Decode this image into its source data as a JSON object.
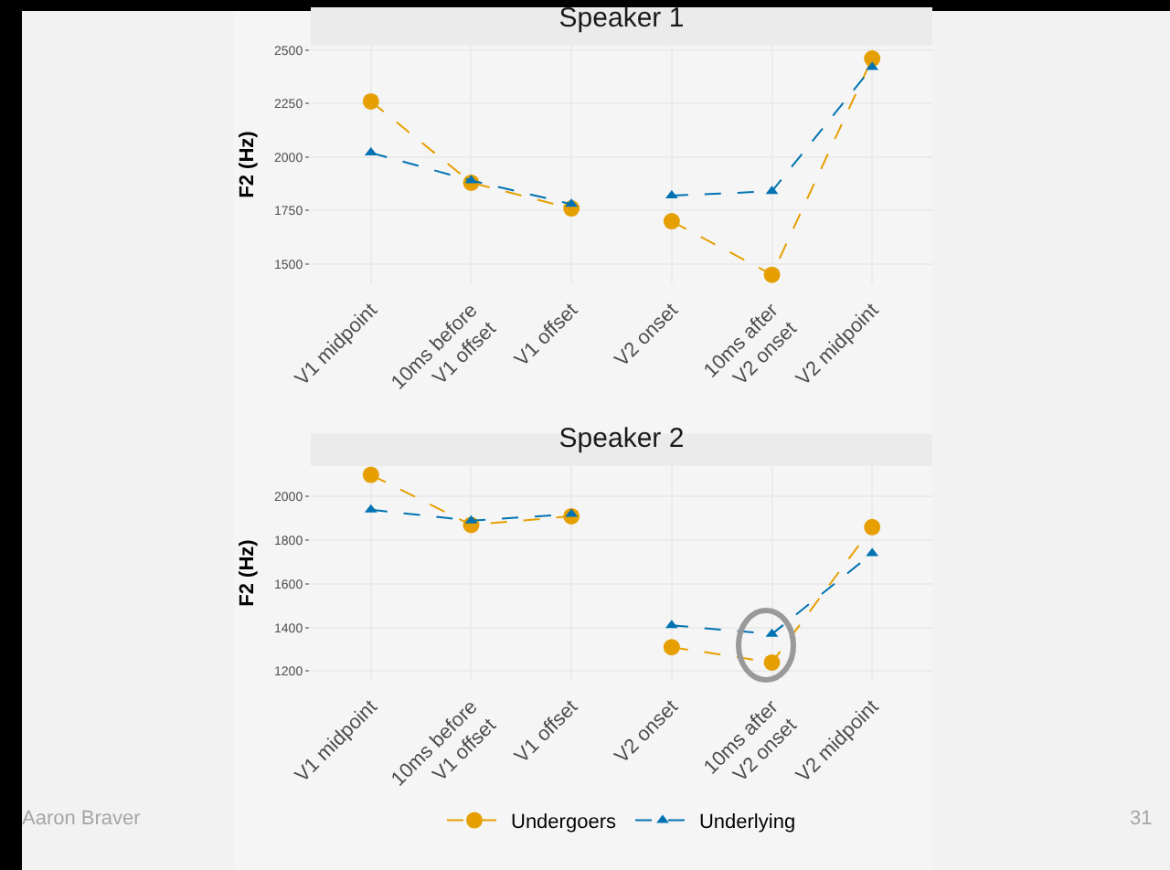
{
  "chart_data": [
    {
      "type": "line",
      "title": "Speaker 1",
      "ylabel": "F2 (Hz)",
      "categories": [
        "V1 midpoint",
        "10ms before\nV1 offset",
        "V1 offset",
        "V2 onset",
        "10ms after\nV2 onset",
        "V2 midpoint"
      ],
      "ylim": [
        1410,
        2520
      ],
      "yticks": [
        1500,
        1750,
        2000,
        2250,
        2500
      ],
      "grid": true,
      "legend": false,
      "line_style": "dashed",
      "series": [
        {
          "color": "#e69f00",
          "marker": "circle",
          "values": [
            2260,
            1880,
            1760,
            null,
            null,
            null
          ]
        },
        {
          "color": "#0072b2",
          "marker": "triangle",
          "values": [
            2020,
            1890,
            1780,
            null,
            null,
            null
          ]
        },
        {
          "color": "#e69f00",
          "marker": "circle",
          "values": [
            null,
            null,
            null,
            1700,
            1450,
            2460
          ]
        },
        {
          "color": "#0072b2",
          "marker": "triangle",
          "values": [
            null,
            null,
            null,
            1820,
            1840,
            2420
          ]
        }
      ]
    },
    {
      "type": "line",
      "title": "Speaker 2",
      "ylabel": "F2 (Hz)",
      "categories": [
        "V1 midpoint",
        "10ms before\nV1 offset",
        "V1 offset",
        "V2 onset",
        "10ms after\nV2 onset",
        "V2 midpoint"
      ],
      "ylim": [
        1160,
        2140
      ],
      "yticks": [
        1200,
        1400,
        1600,
        1800,
        2000
      ],
      "grid": true,
      "legend": "bottom",
      "line_style": "dashed",
      "annotations": [
        "Aaron Braver",
        "31"
      ],
      "series": [
        {
          "name": "Undergoers",
          "color": "#e69f00",
          "marker": "circle",
          "values": [
            2100,
            1870,
            1910,
            null,
            null,
            null
          ]
        },
        {
          "name": "Underlying",
          "color": "#0072b2",
          "marker": "triangle",
          "values": [
            1940,
            1890,
            1920,
            null,
            null,
            null
          ]
        },
        {
          "color": "#e69f00",
          "marker": "circle",
          "values": [
            null,
            null,
            null,
            1310,
            1240,
            1860
          ]
        },
        {
          "color": "#0072b2",
          "marker": "triangle",
          "values": [
            null,
            null,
            null,
            1410,
            1370,
            1740
          ]
        }
      ]
    }
  ]
}
